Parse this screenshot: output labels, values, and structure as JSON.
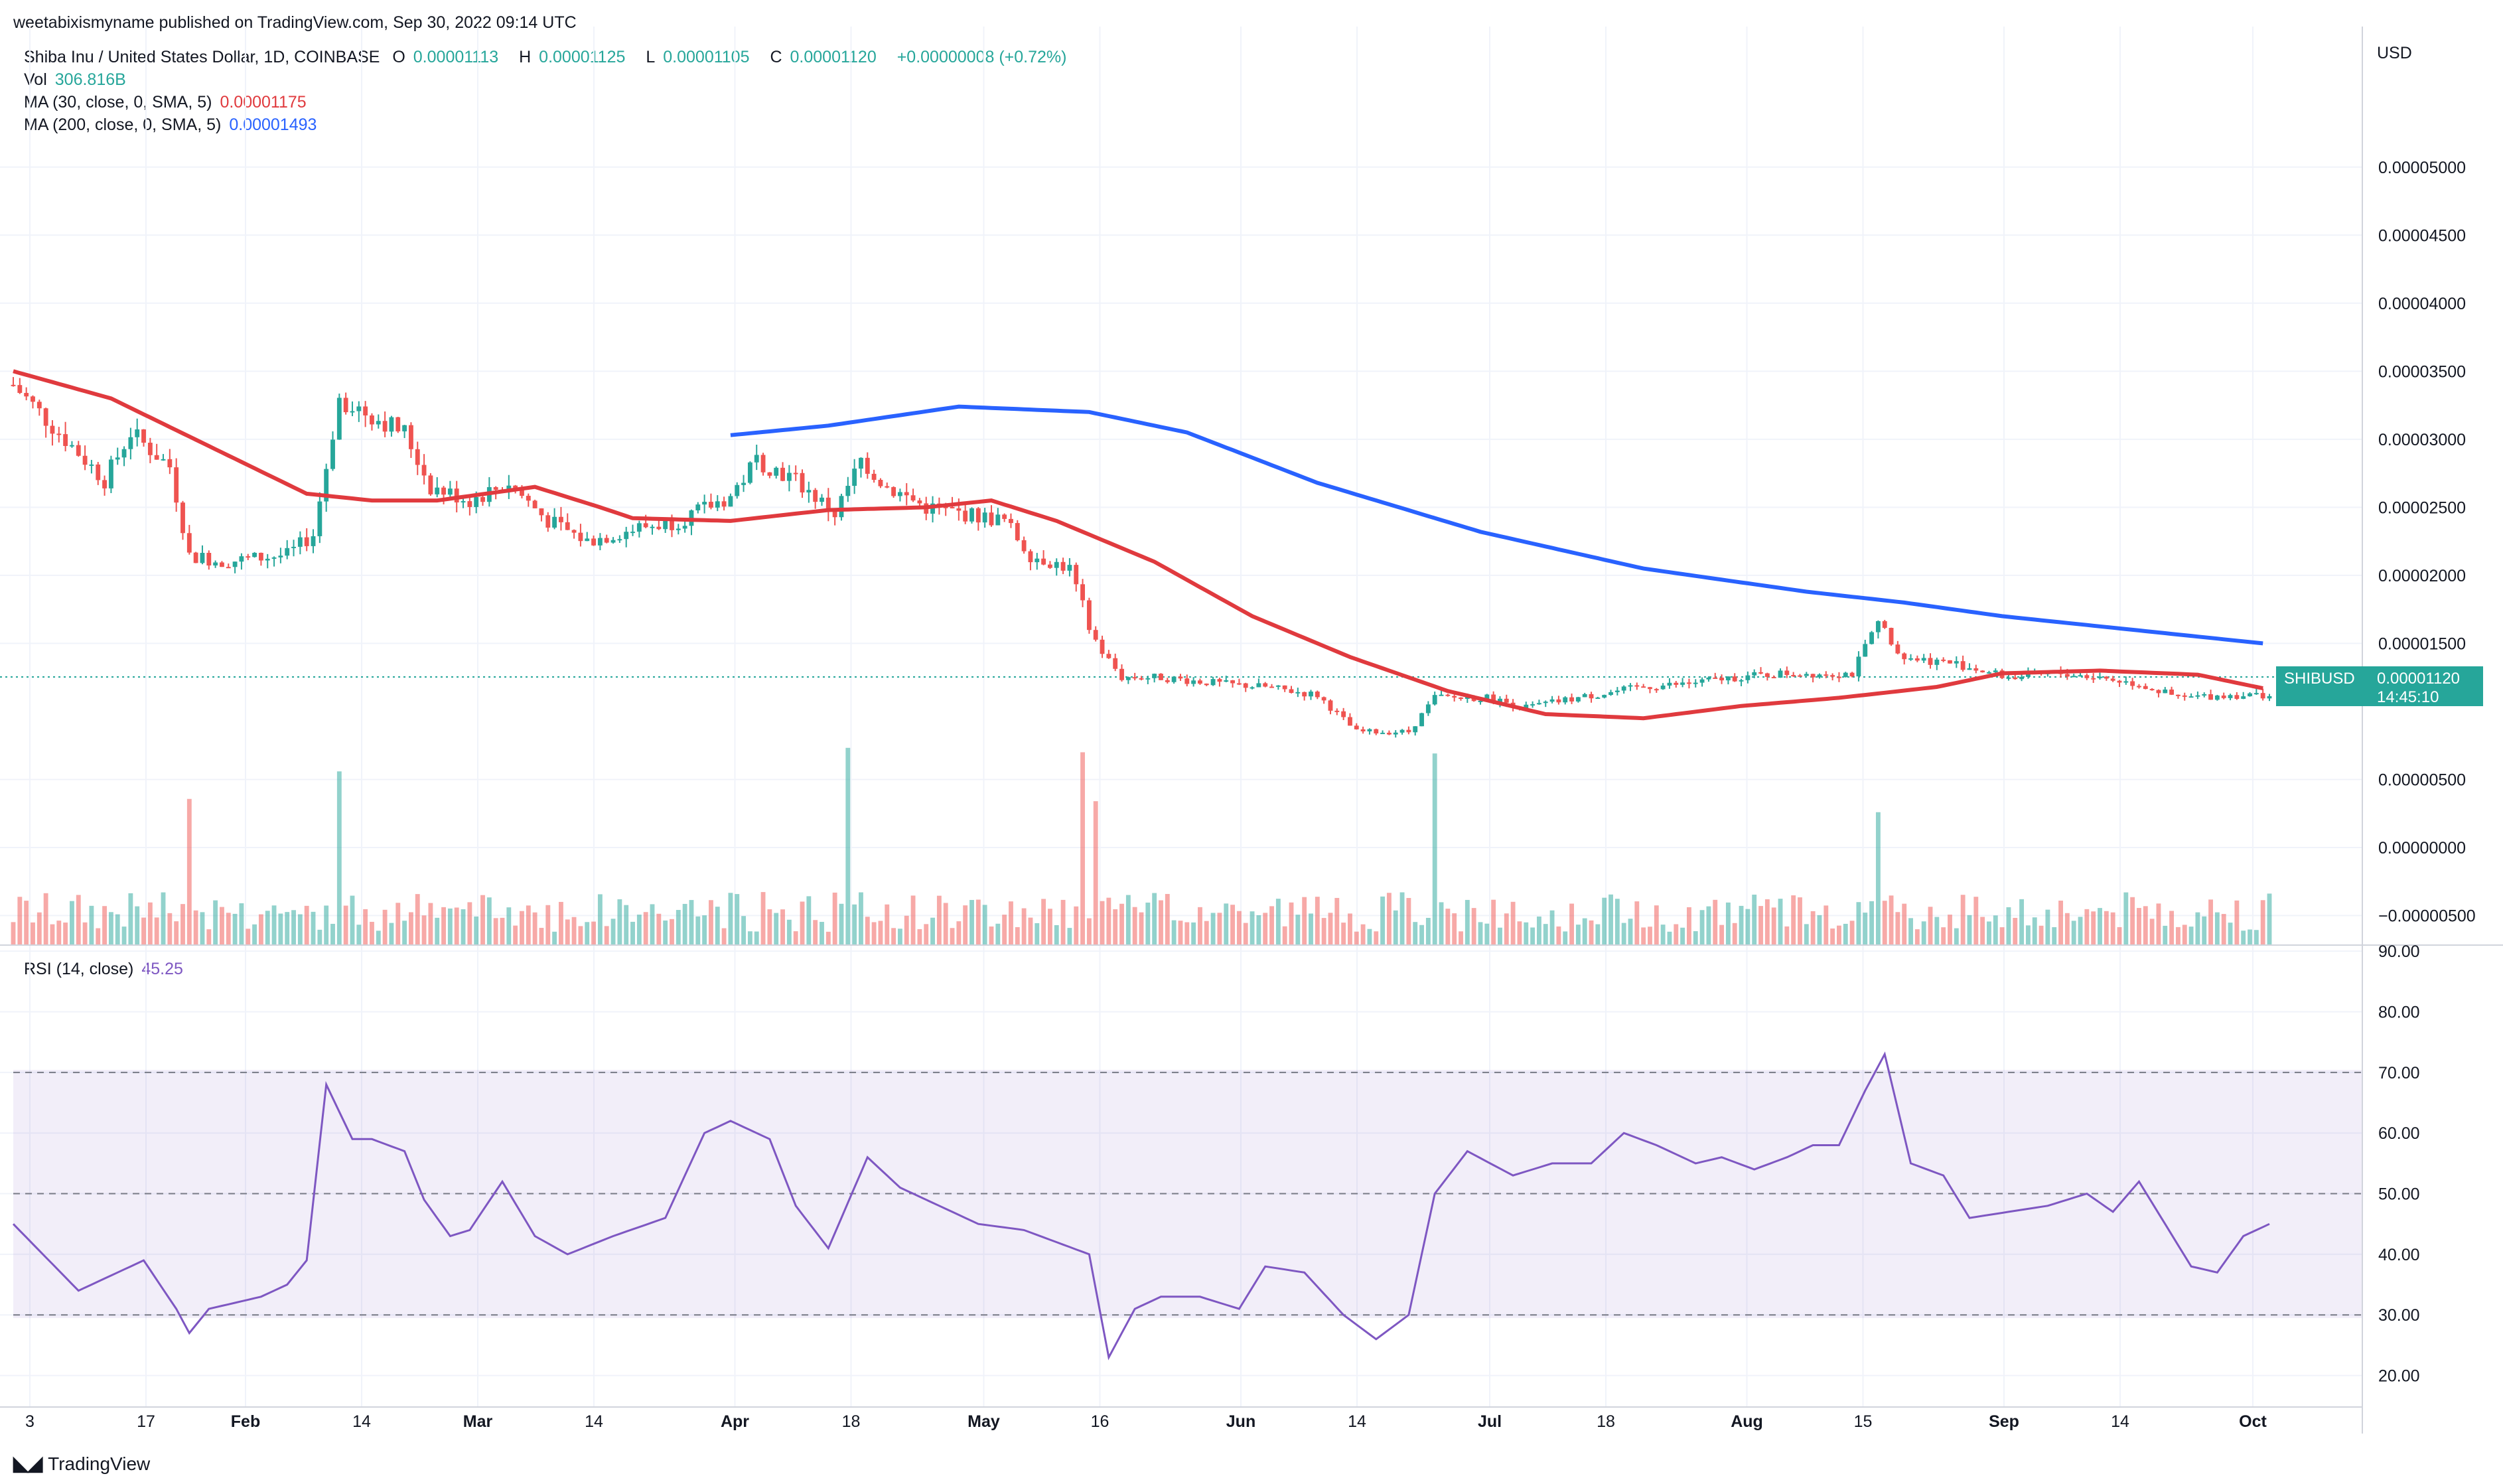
{
  "publisher": "weetabixismyname published on TradingView.com, Sep 30, 2022 09:14 UTC",
  "symbol": {
    "name": "Shiba Inu / United States Dollar, 1D, COINBASE",
    "o_label": "O",
    "o": "0.00001113",
    "h_label": "H",
    "h": "0.00001125",
    "l_label": "L",
    "l": "0.00001105",
    "c_label": "C",
    "c": "0.00001120",
    "change": "+0.00000008 (+0.72%)"
  },
  "vol": {
    "label": "Vol",
    "value": "306.816B"
  },
  "ma30": {
    "label": "MA (30, close, 0, SMA, 5)",
    "value": "0.00001175",
    "color": "#e03a3e"
  },
  "ma200": {
    "label": "MA (200, close, 0, SMA, 5)",
    "value": "0.00001493",
    "color": "#2962ff"
  },
  "rsi": {
    "label": "RSI (14, close)",
    "value": "45.25",
    "color": "#7e57c2"
  },
  "currency": "USD",
  "price_tag": {
    "symbol": "SHIBUSD",
    "price": "0.00001120",
    "countdown": "14:45:10"
  },
  "logo_text": "TradingView",
  "colors": {
    "up": "#26a69a",
    "down": "#ef5350",
    "grid": "#f0f3fa"
  },
  "chart_data": {
    "type": "candlestick",
    "x_ticks": [
      "3",
      "17",
      "Feb",
      "14",
      "Mar",
      "14",
      "Apr",
      "18",
      "May",
      "16",
      "Jun",
      "14",
      "Jul",
      "18",
      "Aug",
      "15",
      "Sep",
      "14",
      "Oct"
    ],
    "y_ticks": [
      "0.00005000",
      "0.00004500",
      "0.00004000",
      "0.00003500",
      "0.00003000",
      "0.00002500",
      "0.00002000",
      "0.00001500",
      "0.00000500",
      "0.00000000",
      "−0.00000500"
    ],
    "rsi_ticks": [
      "90.00",
      "80.00",
      "70.00",
      "60.00",
      "50.00",
      "40.00",
      "30.00",
      "20.00"
    ],
    "ylim": [
      -6e-06,
      5.35e-05
    ],
    "rsi_ylim": [
      17,
      91
    ],
    "rsi_bands": [
      30,
      50,
      70
    ],
    "ma30_anchors": [
      [
        0,
        3.5e-05
      ],
      [
        15,
        3.3e-05
      ],
      [
        30,
        2.95e-05
      ],
      [
        45,
        2.6e-05
      ],
      [
        55,
        2.55e-05
      ],
      [
        65,
        2.55e-05
      ],
      [
        80,
        2.65e-05
      ],
      [
        90,
        2.5e-05
      ],
      [
        95,
        2.42e-05
      ],
      [
        110,
        2.4e-05
      ],
      [
        125,
        2.48e-05
      ],
      [
        140,
        2.5e-05
      ],
      [
        150,
        2.55e-05
      ],
      [
        160,
        2.4e-05
      ],
      [
        175,
        2.1e-05
      ],
      [
        190,
        1.7e-05
      ],
      [
        205,
        1.4e-05
      ],
      [
        220,
        1.15e-05
      ],
      [
        235,
        9.8e-06
      ],
      [
        250,
        9.5e-06
      ],
      [
        265,
        1.04e-05
      ],
      [
        280,
        1.1e-05
      ],
      [
        295,
        1.18e-05
      ],
      [
        305,
        1.28e-05
      ],
      [
        320,
        1.3e-05
      ],
      [
        335,
        1.27e-05
      ],
      [
        345,
        1.17e-05
      ]
    ],
    "ma200_anchors": [
      [
        110,
        3.03e-05
      ],
      [
        125,
        3.1e-05
      ],
      [
        145,
        3.24e-05
      ],
      [
        165,
        3.2e-05
      ],
      [
        180,
        3.05e-05
      ],
      [
        200,
        2.68e-05
      ],
      [
        225,
        2.32e-05
      ],
      [
        250,
        2.05e-05
      ],
      [
        275,
        1.88e-05
      ],
      [
        290,
        1.8e-05
      ],
      [
        305,
        1.7e-05
      ],
      [
        325,
        1.6e-05
      ],
      [
        345,
        1.5e-05
      ]
    ],
    "rsi_anchors": [
      [
        0,
        45
      ],
      [
        10,
        34
      ],
      [
        20,
        39
      ],
      [
        25,
        31
      ],
      [
        27,
        27
      ],
      [
        30,
        31
      ],
      [
        38,
        33
      ],
      [
        42,
        35
      ],
      [
        45,
        39
      ],
      [
        48,
        68
      ],
      [
        52,
        59
      ],
      [
        55,
        59
      ],
      [
        60,
        57
      ],
      [
        63,
        49
      ],
      [
        67,
        43
      ],
      [
        70,
        44
      ],
      [
        75,
        52
      ],
      [
        80,
        43
      ],
      [
        85,
        40
      ],
      [
        92,
        43
      ],
      [
        100,
        46
      ],
      [
        106,
        60
      ],
      [
        110,
        62
      ],
      [
        116,
        59
      ],
      [
        120,
        48
      ],
      [
        125,
        41
      ],
      [
        131,
        56
      ],
      [
        136,
        51
      ],
      [
        142,
        48
      ],
      [
        148,
        45
      ],
      [
        155,
        44
      ],
      [
        165,
        40
      ],
      [
        168,
        23
      ],
      [
        172,
        31
      ],
      [
        176,
        33
      ],
      [
        182,
        33
      ],
      [
        188,
        31
      ],
      [
        192,
        38
      ],
      [
        198,
        37
      ],
      [
        204,
        30
      ],
      [
        209,
        26
      ],
      [
        214,
        30
      ],
      [
        218,
        50
      ],
      [
        223,
        57
      ],
      [
        230,
        53
      ],
      [
        236,
        55
      ],
      [
        242,
        55
      ],
      [
        247,
        60
      ],
      [
        252,
        58
      ],
      [
        258,
        55
      ],
      [
        262,
        56
      ],
      [
        267,
        54
      ],
      [
        272,
        56
      ],
      [
        276,
        58
      ],
      [
        280,
        58
      ],
      [
        284,
        67
      ],
      [
        287,
        73
      ],
      [
        291,
        55
      ],
      [
        296,
        53
      ],
      [
        300,
        46
      ],
      [
        306,
        47
      ],
      [
        312,
        48
      ],
      [
        318,
        50
      ],
      [
        322,
        47
      ],
      [
        326,
        52
      ],
      [
        330,
        45
      ],
      [
        334,
        38
      ],
      [
        338,
        37
      ],
      [
        342,
        43
      ],
      [
        346,
        45
      ]
    ],
    "price_anchors": [
      [
        0,
        3.4e-05
      ],
      [
        8,
        3e-05
      ],
      [
        14,
        2.7e-05
      ],
      [
        18,
        3.05e-05
      ],
      [
        24,
        2.8e-05
      ],
      [
        27,
        2.15e-05
      ],
      [
        32,
        2.1e-05
      ],
      [
        42,
        2.15e-05
      ],
      [
        46,
        2.3e-05
      ],
      [
        50,
        3.3e-05
      ],
      [
        54,
        3.2e-05
      ],
      [
        60,
        3.05e-05
      ],
      [
        64,
        2.65e-05
      ],
      [
        70,
        2.55e-05
      ],
      [
        76,
        2.68e-05
      ],
      [
        82,
        2.4e-05
      ],
      [
        88,
        2.25e-05
      ],
      [
        96,
        2.35e-05
      ],
      [
        102,
        2.4e-05
      ],
      [
        110,
        2.58e-05
      ],
      [
        114,
        2.85e-05
      ],
      [
        120,
        2.7e-05
      ],
      [
        126,
        2.45e-05
      ],
      [
        130,
        2.85e-05
      ],
      [
        134,
        2.65e-05
      ],
      [
        140,
        2.5e-05
      ],
      [
        146,
        2.45e-05
      ],
      [
        152,
        2.4e-05
      ],
      [
        156,
        2.15e-05
      ],
      [
        162,
        2.05e-05
      ],
      [
        166,
        1.5e-05
      ],
      [
        170,
        1.25e-05
      ],
      [
        176,
        1.25e-05
      ],
      [
        186,
        1.2e-05
      ],
      [
        192,
        1.18e-05
      ],
      [
        200,
        1.12e-05
      ],
      [
        206,
        8.5e-06
      ],
      [
        214,
        8.5e-06
      ],
      [
        218,
        1.1e-05
      ],
      [
        226,
        1.1e-05
      ],
      [
        232,
        1.03e-05
      ],
      [
        240,
        1.1e-05
      ],
      [
        250,
        1.18e-05
      ],
      [
        256,
        1.2e-05
      ],
      [
        264,
        1.25e-05
      ],
      [
        272,
        1.28e-05
      ],
      [
        282,
        1.28e-05
      ],
      [
        286,
        1.65e-05
      ],
      [
        290,
        1.4e-05
      ],
      [
        298,
        1.35e-05
      ],
      [
        306,
        1.25e-05
      ],
      [
        314,
        1.28e-05
      ],
      [
        320,
        1.25e-05
      ],
      [
        326,
        1.2e-05
      ],
      [
        332,
        1.1e-05
      ],
      [
        340,
        1.12e-05
      ],
      [
        346,
        1.12e-05
      ]
    ]
  }
}
